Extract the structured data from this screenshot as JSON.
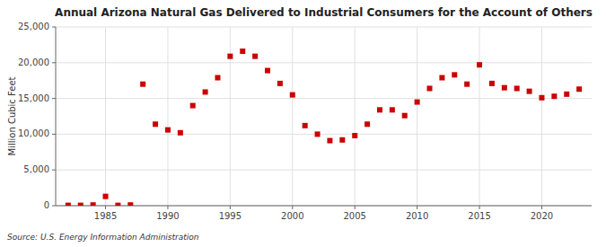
{
  "chart_data": {
    "type": "scatter",
    "title": "Annual Arizona Natural Gas Delivered to Industrial Consumers for the Account of Others",
    "ylabel": "Million Cubic Feet",
    "annotations": [
      "Source: U.S. Energy Information Administration"
    ],
    "x": [
      1982,
      1983,
      1984,
      1985,
      1986,
      1987,
      1988,
      1989,
      1990,
      1991,
      1992,
      1993,
      1994,
      1995,
      1996,
      1997,
      1998,
      1999,
      2000,
      2001,
      2002,
      2003,
      2004,
      2005,
      2006,
      2007,
      2008,
      2009,
      2010,
      2011,
      2012,
      2013,
      2014,
      2015,
      2016,
      2017,
      2018,
      2019,
      2020,
      2021,
      2022,
      2023
    ],
    "values": [
      50,
      50,
      100,
      1300,
      50,
      100,
      17000,
      11400,
      10600,
      10200,
      14000,
      15900,
      17900,
      20900,
      21600,
      20900,
      18900,
      17100,
      15500,
      11200,
      10000,
      9100,
      9200,
      9800,
      11400,
      13400,
      13400,
      12600,
      14500,
      16400,
      17900,
      18300,
      17000,
      19700,
      17100,
      16500,
      16400,
      16000,
      15100,
      15300,
      15600,
      16300
    ],
    "color": "#cc0000",
    "marker": "square",
    "grid": true,
    "xlim": [
      1981,
      2024
    ],
    "ylim": [
      0,
      25000
    ],
    "xticks": [
      1985,
      1990,
      1995,
      2000,
      2005,
      2010,
      2015,
      2020
    ],
    "yticks": [
      0,
      {
        "value": 5000,
        "label": "5,000"
      },
      {
        "value": 10000,
        "label": "10,000"
      },
      {
        "value": 15000,
        "label": "15,000"
      },
      {
        "value": 20000,
        "label": "20,000"
      },
      {
        "value": 25000,
        "label": "25,000"
      }
    ]
  }
}
